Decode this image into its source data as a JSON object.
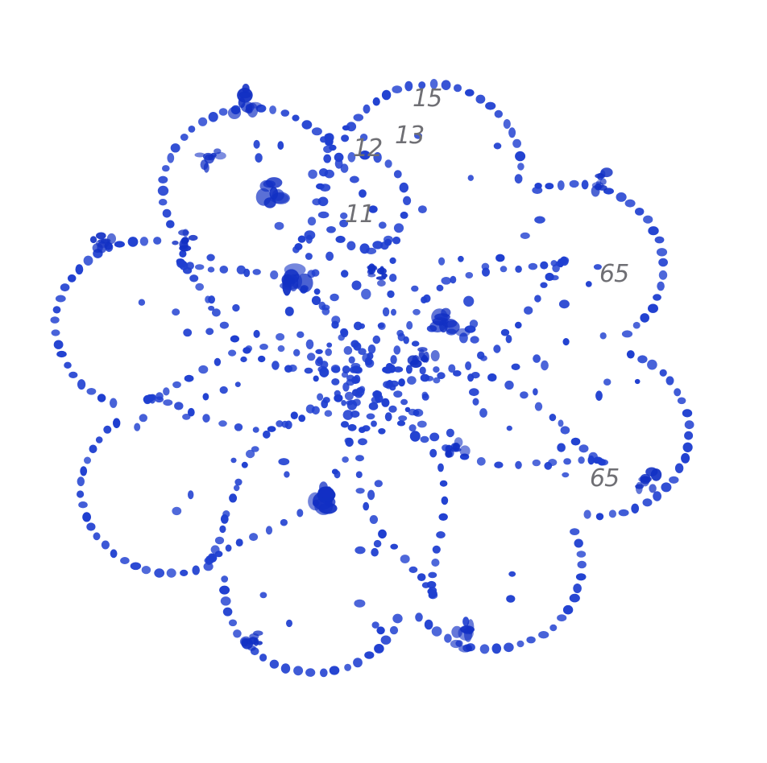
{
  "figure": {
    "description": "Dotted lace pattern pricking in blue ink with pencil pin numbers",
    "ink_color": "#1f3fd0",
    "dark_ink_color": "#1230c4",
    "pencil_color": "#6f6f74",
    "background": "#ffffff"
  },
  "labels": {
    "label_15": "15",
    "label_13": "13",
    "label_12": "12",
    "label_11": "11",
    "label_65_top": "65",
    "label_65_bottom": "65"
  }
}
